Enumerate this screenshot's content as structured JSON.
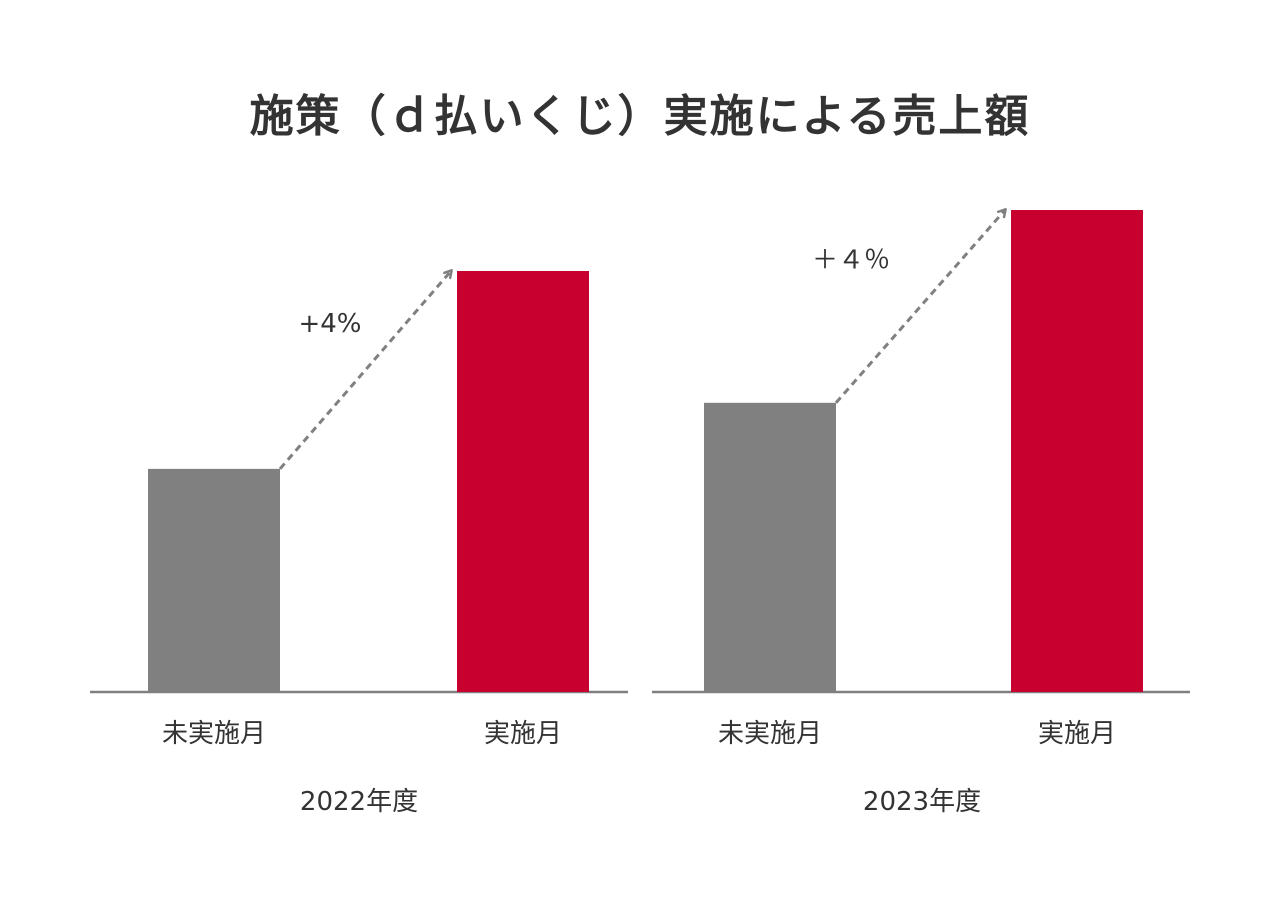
{
  "title": "施策（ｄ払いくじ）実施による売上額",
  "colors": {
    "baseline_bar": "#808080",
    "campaign_bar": "#c8002f",
    "arrow": "#808080",
    "axis": "#808080",
    "text": "#333333"
  },
  "chart_data": [
    {
      "type": "bar",
      "group_label": "2022年度",
      "categories": [
        "未実施月",
        "実施月"
      ],
      "values": [
        53,
        100
      ],
      "ylim": [
        0,
        100
      ],
      "annotation": "+4%"
    },
    {
      "type": "bar",
      "group_label": "2023年度",
      "categories": [
        "未実施月",
        "実施月"
      ],
      "values": [
        60,
        100
      ],
      "ylim": [
        0,
        100
      ],
      "annotation": "＋４％"
    }
  ]
}
